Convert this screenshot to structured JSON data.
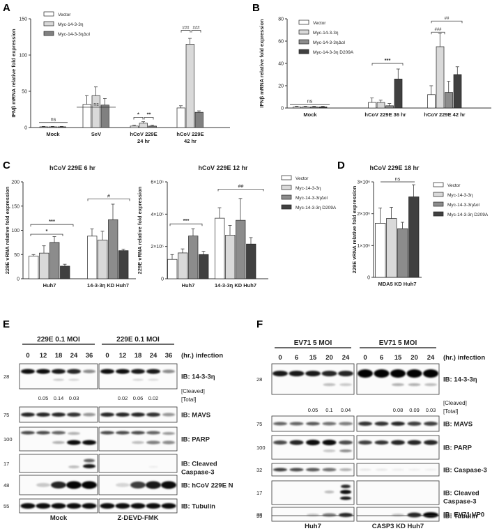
{
  "figure": {
    "panel_labels": [
      "A",
      "B",
      "C",
      "D",
      "E",
      "F"
    ]
  },
  "chart_data": [
    {
      "panel": "A",
      "type": "bar",
      "ylabel": "IFNβ mRNA relative fold expression",
      "ylim": [
        0,
        150
      ],
      "yticks": [
        "0",
        "50",
        "100",
        "150"
      ],
      "categories": [
        "Mock",
        "SeV",
        "hCoV 229E|24 hr",
        "hCoV 229E|42 hr"
      ],
      "series": [
        {
          "name": "Vector",
          "values": [
            1,
            32,
            2,
            27
          ],
          "errors": [
            0.5,
            12,
            1,
            3
          ]
        },
        {
          "name": "Myc-14-3-3η",
          "values": [
            1,
            44,
            6,
            115
          ],
          "errors": [
            0.5,
            12,
            2,
            8
          ]
        },
        {
          "name": "Myc-14-3-3ηΔol",
          "values": [
            1,
            31,
            2,
            21
          ],
          "errors": [
            0.5,
            9,
            1,
            2
          ]
        }
      ],
      "colors": [
        "#ffffff",
        "#d9d9d9",
        "#808080"
      ],
      "annotations": [
        "ns",
        "ns",
        "*",
        "**",
        "###",
        "###"
      ]
    },
    {
      "panel": "B",
      "type": "bar",
      "ylabel": "IFNβ mRNA relative fold expression",
      "ylim": [
        0,
        80
      ],
      "yticks": [
        "0",
        "20",
        "40",
        "60",
        "80"
      ],
      "categories": [
        "Mock",
        "hCoV 229E 36 hr",
        "hCoV 229E 42 hr"
      ],
      "series": [
        {
          "name": "Vector",
          "values": [
            1,
            5,
            12
          ],
          "errors": [
            0.5,
            4,
            8
          ]
        },
        {
          "name": "Myc-14-3-3η",
          "values": [
            1,
            5,
            55
          ],
          "errors": [
            0.5,
            2,
            12
          ]
        },
        {
          "name": "Myc-14-3-3ηΔol",
          "values": [
            1,
            2,
            14
          ],
          "errors": [
            0.5,
            2,
            10
          ]
        },
        {
          "name": "Myc-14-3-3η D209A",
          "values": [
            1,
            26,
            30
          ],
          "errors": [
            0.5,
            9,
            7
          ]
        }
      ],
      "colors": [
        "#ffffff",
        "#d9d9d9",
        "#8c8c8c",
        "#404040"
      ],
      "annotations": [
        "ns",
        "***",
        "###",
        "##"
      ]
    },
    {
      "panel": "C1",
      "type": "bar",
      "title": "hCoV 229E 6 hr",
      "ylabel": "229E vRNA relative fold expression",
      "ylim": [
        0,
        200
      ],
      "yticks": [
        "0",
        "50",
        "100",
        "150",
        "200"
      ],
      "categories": [
        "Huh7",
        "14-3-3η KD Huh7"
      ],
      "series": [
        {
          "name": "Vector",
          "values": [
            47,
            88
          ],
          "errors": [
            3,
            15
          ]
        },
        {
          "name": "Myc-14-3-3η",
          "values": [
            53,
            80
          ],
          "errors": [
            15,
            18
          ]
        },
        {
          "name": "Myc-14-3-3ηΔol",
          "values": [
            75,
            122
          ],
          "errors": [
            12,
            32
          ]
        },
        {
          "name": "Myc-14-3-3η D209A",
          "values": [
            26,
            58
          ],
          "errors": [
            4,
            3
          ]
        }
      ],
      "colors": [
        "#ffffff",
        "#d9d9d9",
        "#8c8c8c",
        "#404040"
      ],
      "annotations": [
        "***",
        "*",
        "#"
      ]
    },
    {
      "panel": "C2",
      "type": "bar",
      "title": "hCoV 229E 12 hr",
      "ylabel": "229E vRNA relative fold expression",
      "ylim": [
        0,
        600000
      ],
      "yticks": [
        "0",
        "2×10⁵",
        "4×10⁵",
        "6×10⁵"
      ],
      "categories": [
        "Huh7",
        "14-3-3η KD Huh7"
      ],
      "series": [
        {
          "name": "Vector",
          "values": [
            120000,
            375000
          ],
          "errors": [
            30000,
            65000
          ]
        },
        {
          "name": "Myc-14-3-3η",
          "values": [
            160000,
            270000
          ],
          "errors": [
            25000,
            60000
          ]
        },
        {
          "name": "Myc-14-3-3ηΔol",
          "values": [
            265000,
            362000
          ],
          "errors": [
            45000,
            135000
          ]
        },
        {
          "name": "Myc-14-3-3η D209A",
          "values": [
            150000,
            215000
          ],
          "errors": [
            20000,
            40000
          ]
        }
      ],
      "colors": [
        "#ffffff",
        "#d9d9d9",
        "#8c8c8c",
        "#404040"
      ],
      "legend": [
        "Vector",
        "Myc-14-3-3η",
        "Myc-14-3-3ηΔol",
        "Myc-14-3-3η D209A"
      ],
      "annotations": [
        "***",
        "##"
      ]
    },
    {
      "panel": "D",
      "type": "bar",
      "title": "hCoV 229E 18 hr",
      "ylabel": "229E vRNA relative fold expression",
      "ylim": [
        0,
        3000000
      ],
      "yticks": [
        "0",
        "1×10⁶",
        "2×10⁶",
        "3×10⁶"
      ],
      "categories": [
        "MDA5 KD Huh7"
      ],
      "series": [
        {
          "name": "Vector",
          "values": [
            1700000
          ],
          "errors": [
            480000
          ]
        },
        {
          "name": "Myc-14-3-3η",
          "values": [
            1850000
          ],
          "errors": [
            350000
          ]
        },
        {
          "name": "Myc-14-3-3ηΔol",
          "values": [
            1530000
          ],
          "errors": [
            200000
          ]
        },
        {
          "name": "Myc-14-3-3η D209A",
          "values": [
            2530000
          ],
          "errors": [
            380000
          ]
        }
      ],
      "colors": [
        "#ffffff",
        "#d9d9d9",
        "#8c8c8c",
        "#404040"
      ],
      "legend": [
        "Vector",
        "Myc-14-3-3η",
        "Myc-14-3-3ηΔol",
        "Myc-14-3-3η D209A"
      ],
      "annotations": [
        "ns"
      ]
    }
  ],
  "blot_e": {
    "moi_labels": [
      "229E 0.1 MOI",
      "229E 0.1 MOI"
    ],
    "timepoints": [
      "0",
      "12",
      "18",
      "24",
      "36"
    ],
    "time_label": "(hr.) infection",
    "mw": [
      "28",
      "75",
      "100",
      "17",
      "48",
      "55"
    ],
    "ib": [
      "IB: 14-3-3η",
      "IB: MAVS",
      "IB: PARP",
      "IB: Cleaved|Caspase-3",
      "IB: hCoV 229E N",
      "IB: Tubulin"
    ],
    "ratio_label": "[Cleaved]|[Total]",
    "ratios_left": [
      "0.05",
      "0.14",
      "0.03"
    ],
    "ratios_right": [
      "0.02",
      "0.06",
      "0.02"
    ],
    "groups": [
      "Mock",
      "Z-DEVD-FMK"
    ]
  },
  "blot_f": {
    "moi_labels": [
      "EV71 5 MOI",
      "EV71 5 MOI"
    ],
    "timepoints": [
      "0",
      "6",
      "15",
      "20",
      "24"
    ],
    "time_label": "(hr.) infection",
    "mw": [
      "28",
      "75",
      "100",
      "32",
      "17",
      "38",
      "55"
    ],
    "ib": [
      "IB: 14-3-3η",
      "IB: MAVS",
      "IB: PARP",
      "IB: Caspase-3",
      "IB: Cleaved|Caspase-3",
      "IB: EV71 VP0",
      "IB: Tubulin"
    ],
    "ratio_label": "[Cleaved]|[Total]",
    "ratios_left": [
      "0.05",
      "0.1",
      "0.04"
    ],
    "ratios_right": [
      "0.08",
      "0.09",
      "0.03"
    ],
    "groups": [
      "Huh7",
      "CASP3 KD Huh7"
    ]
  }
}
